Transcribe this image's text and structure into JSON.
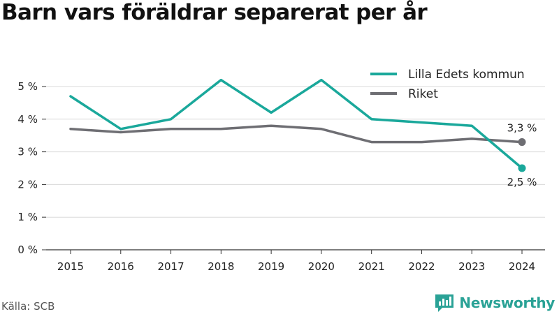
{
  "title": "Barn vars föräldrar separerat per år",
  "source": "Källa: SCB",
  "brand": "Newsworthy",
  "colors": {
    "brand": "#2aa296",
    "axis": "#333333",
    "grid": "#d9d9d9",
    "text": "#222222"
  },
  "chart_data": {
    "type": "line",
    "title": "Barn vars föräldrar separerat per år",
    "xlabel": "",
    "ylabel": "",
    "x": [
      "2015",
      "2016",
      "2017",
      "2018",
      "2019",
      "2020",
      "2021",
      "2022",
      "2023",
      "2024"
    ],
    "ylim": [
      0,
      5
    ],
    "yticks": [
      0,
      1,
      2,
      3,
      4,
      5
    ],
    "ytick_labels": [
      "0 %",
      "1 %",
      "2 %",
      "3 %",
      "4 %",
      "5 %"
    ],
    "grid": "horizontal",
    "legend_position": "top-right",
    "series": [
      {
        "name": "Lilla Edets kommun",
        "color": "#1aa89b",
        "values": [
          4.7,
          3.7,
          4.0,
          5.2,
          4.2,
          5.2,
          4.0,
          3.9,
          3.8,
          2.5
        ],
        "end_label": "2,5 %"
      },
      {
        "name": "Riket",
        "color": "#6e6e73",
        "values": [
          3.7,
          3.6,
          3.7,
          3.7,
          3.8,
          3.7,
          3.3,
          3.3,
          3.4,
          3.3
        ],
        "end_label": "3,3 %"
      }
    ]
  }
}
